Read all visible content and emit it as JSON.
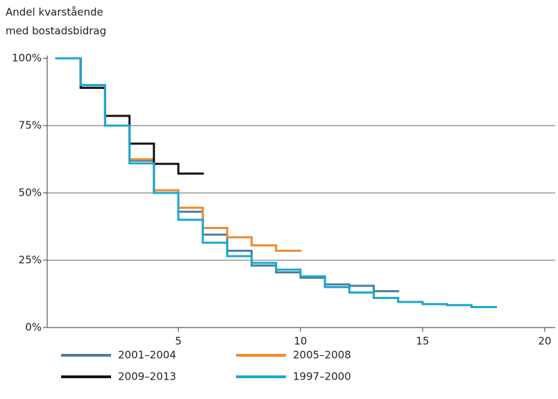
{
  "chart_data": {
    "type": "step",
    "title": [
      "Andel kvarstående",
      "med bostadsbidrag"
    ],
    "x": [
      0,
      1,
      2,
      3,
      4,
      5,
      6,
      7,
      8,
      9,
      10,
      11,
      12,
      13,
      14,
      15,
      16,
      17,
      18
    ],
    "series": [
      {
        "name": "2001–2004",
        "color": "#4a7fa0",
        "values": [
          100,
          90,
          75,
          62,
          50,
          43,
          34.5,
          28.5,
          23,
          20.5,
          18.5,
          16,
          15.5,
          13.5,
          null,
          null,
          null,
          null,
          null
        ]
      },
      {
        "name": "2005–2008",
        "color": "#f08a2c",
        "values": [
          100,
          90,
          75,
          62.5,
          51,
          44.5,
          37,
          33.5,
          30.5,
          28.5,
          null,
          null,
          null,
          null,
          null,
          null,
          null,
          null,
          null
        ]
      },
      {
        "name": "2009–2013",
        "color": "#111111",
        "values": [
          100,
          89,
          78.6,
          68.3,
          60.8,
          57.2,
          null,
          null,
          null,
          null,
          null,
          null,
          null,
          null,
          null,
          null,
          null,
          null,
          null
        ]
      },
      {
        "name": "1997–2000",
        "color": "#1aa7cf",
        "values": [
          100,
          90,
          75,
          61,
          50,
          40,
          31.5,
          26.5,
          24,
          21.5,
          19,
          15,
          13,
          11,
          9.5,
          8.7,
          8.3,
          7.6,
          null
        ]
      }
    ],
    "xlim": [
      -0.37,
      20.43
    ],
    "xticks": [
      5,
      10,
      15,
      20
    ],
    "ylim": [
      0,
      100
    ],
    "yticks": [
      {
        "value": 0,
        "label": "0%"
      },
      {
        "value": 25,
        "label": "25%"
      },
      {
        "value": 50,
        "label": "50%"
      },
      {
        "value": 75,
        "label": "75%"
      },
      {
        "value": 100,
        "label": "100%"
      }
    ],
    "grid": true
  }
}
